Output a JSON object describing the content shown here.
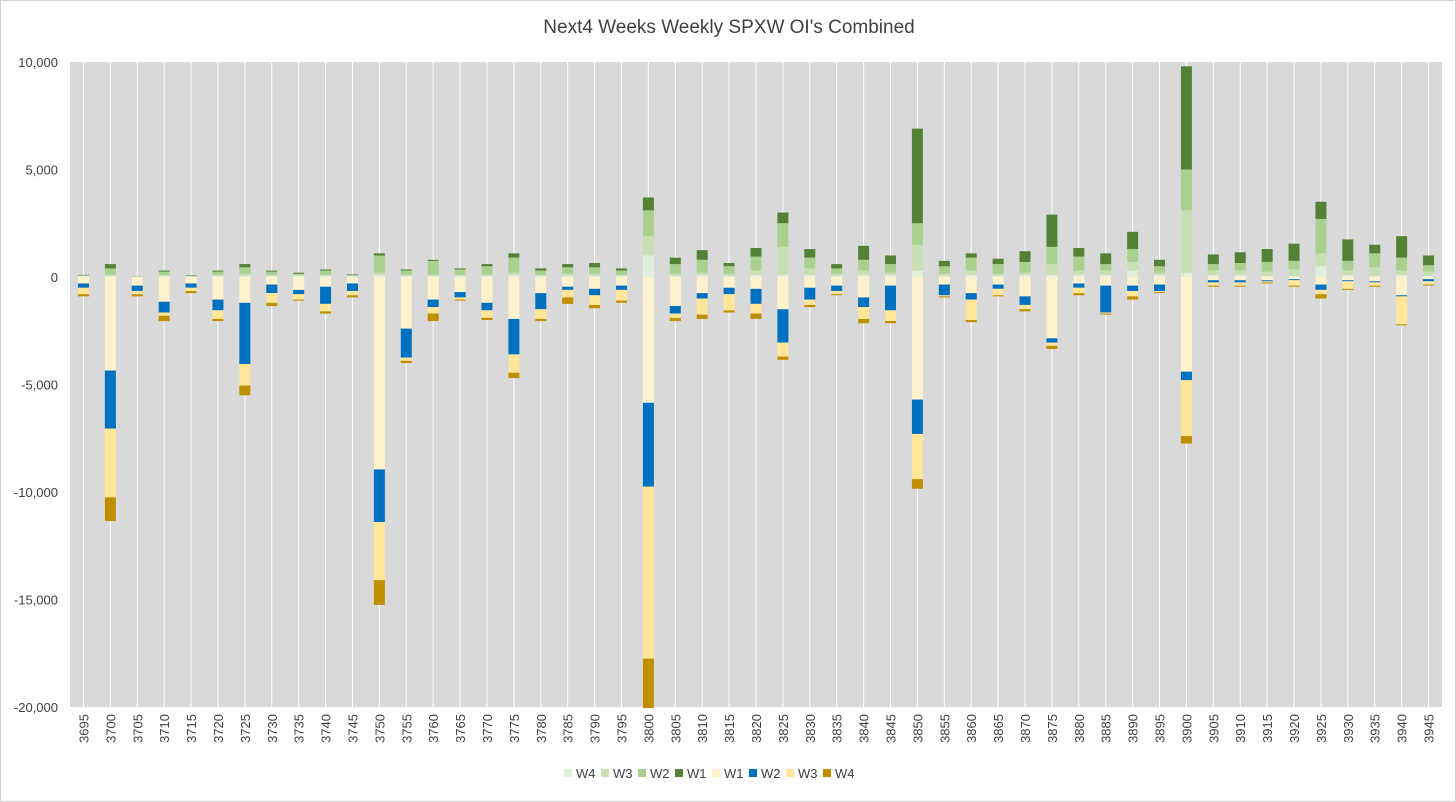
{
  "chart_data": {
    "type": "bar",
    "stacked": true,
    "title": "Next4 Weeks Weekly SPXW OI's Combined",
    "xlabel": "",
    "ylabel": "",
    "ylim": [
      -20000,
      10000
    ],
    "yticks": [
      10000,
      5000,
      0,
      -5000,
      -10000,
      -15000,
      -20000
    ],
    "ytick_labels": [
      "10,000",
      "5,000",
      "0",
      "-5,000",
      "-10,000",
      "-15,000",
      "-20,000"
    ],
    "grid": "vertical",
    "legend_position": "bottom",
    "categories": [
      "3695",
      "3700",
      "3705",
      "3710",
      "3715",
      "3720",
      "3725",
      "3730",
      "3735",
      "3740",
      "3745",
      "3750",
      "3755",
      "3760",
      "3765",
      "3770",
      "3775",
      "3780",
      "3785",
      "3790",
      "3795",
      "3800",
      "3805",
      "3810",
      "3815",
      "3820",
      "3825",
      "3830",
      "3835",
      "3840",
      "3845",
      "3850",
      "3855",
      "3860",
      "3865",
      "3870",
      "3875",
      "3880",
      "3885",
      "3890",
      "3895",
      "3900",
      "3905",
      "3910",
      "3915",
      "3920",
      "3925",
      "3930",
      "3935",
      "3940",
      "3945"
    ],
    "series": [
      {
        "name": "W4",
        "color": "#e2efda",
        "values": [
          50,
          50,
          10,
          50,
          20,
          50,
          50,
          50,
          50,
          50,
          30,
          100,
          50,
          50,
          50,
          50,
          100,
          50,
          50,
          50,
          50,
          1000,
          50,
          100,
          50,
          100,
          100,
          100,
          50,
          100,
          100,
          300,
          50,
          100,
          50,
          100,
          100,
          100,
          100,
          300,
          100,
          200,
          100,
          100,
          50,
          50,
          500,
          100,
          50,
          100,
          50
        ]
      },
      {
        "name": "W3",
        "color": "#c6e0b4",
        "values": [
          20,
          50,
          10,
          50,
          20,
          50,
          100,
          50,
          50,
          50,
          30,
          100,
          50,
          50,
          50,
          50,
          100,
          50,
          100,
          100,
          50,
          900,
          100,
          100,
          100,
          200,
          1300,
          300,
          100,
          200,
          100,
          1200,
          100,
          200,
          100,
          100,
          500,
          200,
          200,
          400,
          100,
          2900,
          200,
          200,
          200,
          300,
          600,
          200,
          400,
          200,
          200
        ]
      },
      {
        "name": "W2",
        "color": "#a9d08e",
        "values": [
          10,
          300,
          10,
          150,
          20,
          150,
          300,
          150,
          50,
          200,
          30,
          800,
          200,
          650,
          250,
          400,
          700,
          200,
          300,
          300,
          200,
          1200,
          450,
          600,
          350,
          650,
          1100,
          500,
          250,
          500,
          400,
          1000,
          350,
          600,
          450,
          500,
          800,
          650,
          300,
          600,
          300,
          1900,
          300,
          350,
          450,
          400,
          1600,
          450,
          650,
          600,
          300
        ]
      },
      {
        "name": "W1",
        "color": "#548235",
        "values": [
          20,
          200,
          0,
          50,
          20,
          50,
          150,
          50,
          50,
          50,
          30,
          100,
          50,
          50,
          50,
          100,
          200,
          100,
          150,
          200,
          100,
          600,
          300,
          450,
          150,
          400,
          500,
          400,
          200,
          650,
          400,
          4400,
          250,
          200,
          250,
          500,
          1500,
          400,
          500,
          800,
          300,
          4800,
          450,
          500,
          600,
          800,
          800,
          1000,
          400,
          1000,
          450
        ]
      },
      {
        "name": "W1",
        "color": "#fff2cc",
        "values": [
          -300,
          -4350,
          -400,
          -1150,
          -300,
          -1050,
          -1200,
          -350,
          -600,
          -450,
          -300,
          -8950,
          -2400,
          -1050,
          -700,
          -1200,
          -1950,
          -750,
          -450,
          -550,
          -400,
          -5850,
          -1350,
          -750,
          -500,
          -550,
          -1500,
          -500,
          -400,
          -950,
          -400,
          -5700,
          -350,
          -750,
          -350,
          -900,
          -2850,
          -300,
          -400,
          -400,
          -350,
          -4400,
          -150,
          -150,
          -150,
          -100,
          -350,
          -150,
          -200,
          -850,
          -100
        ]
      },
      {
        "name": "W2",
        "color": "#0070c0",
        "values": [
          -200,
          -2700,
          -250,
          -500,
          -200,
          -500,
          -2850,
          -400,
          -200,
          -800,
          -350,
          -2450,
          -1350,
          -350,
          -250,
          -350,
          -1650,
          -750,
          -150,
          -300,
          -200,
          -3900,
          -350,
          -250,
          -300,
          -700,
          -1550,
          -550,
          -250,
          -450,
          -1150,
          -1600,
          -500,
          -300,
          -200,
          -400,
          -200,
          -200,
          -1250,
          -250,
          -300,
          -400,
          -100,
          -100,
          -50,
          -50,
          -250,
          -50,
          -50,
          -50,
          -100
        ]
      },
      {
        "name": "W3",
        "color": "#ffe699",
        "values": [
          -300,
          -3200,
          -150,
          -150,
          -150,
          -400,
          -1000,
          -450,
          -250,
          -350,
          -200,
          -2700,
          -150,
          -300,
          -100,
          -350,
          -850,
          -450,
          -350,
          -450,
          -500,
          -8000,
          -200,
          -750,
          -750,
          -450,
          -650,
          -250,
          -150,
          -550,
          -500,
          -2100,
          -50,
          -950,
          -300,
          -200,
          -150,
          -250,
          -50,
          -250,
          -50,
          -2600,
          -150,
          -150,
          -50,
          -250,
          -200,
          -350,
          -150,
          -1300,
          -150
        ]
      },
      {
        "name": "W4",
        "color": "#bf8f00",
        "values": [
          -100,
          -1100,
          -100,
          -250,
          -100,
          -100,
          -450,
          -150,
          -50,
          -100,
          -100,
          -1150,
          -100,
          -350,
          -50,
          -100,
          -250,
          -100,
          -300,
          -150,
          -100,
          -2300,
          -150,
          -200,
          -100,
          -250,
          -150,
          -100,
          -50,
          -200,
          -100,
          -450,
          -50,
          -100,
          -50,
          -100,
          -150,
          -100,
          -50,
          -150,
          -50,
          -350,
          -50,
          -50,
          -50,
          -50,
          -200,
          -50,
          -50,
          -50,
          -50
        ]
      }
    ]
  }
}
